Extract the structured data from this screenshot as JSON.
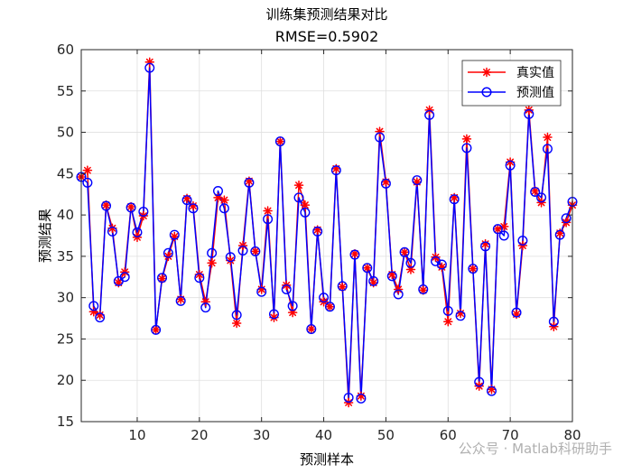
{
  "chart_data": {
    "type": "line",
    "title": "训练集预测结果对比",
    "subtitle": "RMSE=0.5902",
    "xlabel": "预测样本",
    "ylabel": "预测结果",
    "xlim": [
      1,
      80
    ],
    "ylim": [
      15,
      60
    ],
    "xticks": [
      10,
      20,
      30,
      40,
      50,
      60,
      70,
      80
    ],
    "yticks": [
      15,
      20,
      25,
      30,
      35,
      40,
      45,
      50,
      55,
      60
    ],
    "grid": true,
    "legend_position": "top-right",
    "x": [
      1,
      2,
      3,
      4,
      5,
      6,
      7,
      8,
      9,
      10,
      11,
      12,
      13,
      14,
      15,
      16,
      17,
      18,
      19,
      20,
      21,
      22,
      23,
      24,
      25,
      26,
      27,
      28,
      29,
      30,
      31,
      32,
      33,
      34,
      35,
      36,
      37,
      38,
      39,
      40,
      41,
      42,
      43,
      44,
      45,
      46,
      47,
      48,
      49,
      50,
      51,
      52,
      53,
      54,
      55,
      56,
      57,
      58,
      59,
      60,
      61,
      62,
      63,
      64,
      65,
      66,
      67,
      68,
      69,
      70,
      71,
      72,
      73,
      74,
      75,
      76,
      77,
      78,
      79,
      80
    ],
    "series": [
      {
        "name": "真实值",
        "color": "#ff0000",
        "marker": "asterisk",
        "values": [
          44.6,
          45.4,
          28.3,
          27.9,
          41.2,
          38.4,
          31.8,
          33.1,
          41.0,
          37.3,
          39.9,
          58.5,
          26.1,
          32.3,
          35.0,
          37.4,
          29.8,
          42.0,
          41.1,
          32.8,
          29.5,
          34.2,
          42.1,
          41.8,
          34.5,
          26.9,
          36.3,
          44.1,
          35.6,
          31.0,
          40.5,
          27.6,
          48.9,
          31.5,
          28.2,
          43.6,
          41.2,
          26.2,
          38.2,
          29.5,
          28.9,
          45.6,
          31.3,
          17.3,
          35.3,
          18.1,
          33.6,
          31.8,
          50.1,
          44.0,
          32.8,
          31.0,
          35.5,
          33.4,
          44.0,
          30.9,
          52.7,
          34.9,
          33.7,
          27.1,
          42.1,
          28.1,
          49.2,
          33.5,
          19.3,
          36.5,
          18.9,
          38.3,
          38.6,
          46.4,
          28.0,
          36.3,
          52.7,
          42.9,
          41.5,
          49.4,
          26.5,
          37.8,
          39.1,
          41.2
        ]
      },
      {
        "name": "预测值",
        "color": "#0000ff",
        "marker": "circle",
        "values": [
          44.6,
          43.9,
          29.0,
          27.6,
          41.1,
          38.0,
          32.0,
          32.5,
          40.9,
          37.9,
          40.4,
          57.8,
          26.1,
          32.4,
          35.4,
          37.6,
          29.6,
          41.8,
          40.8,
          32.4,
          28.8,
          35.4,
          42.9,
          40.8,
          34.9,
          27.9,
          35.7,
          43.9,
          35.6,
          30.7,
          39.5,
          28.0,
          48.9,
          31.0,
          29.0,
          42.1,
          40.3,
          26.2,
          38.0,
          30.0,
          28.9,
          45.4,
          31.4,
          17.9,
          35.2,
          17.8,
          33.6,
          32.0,
          49.4,
          43.8,
          32.6,
          30.4,
          35.5,
          34.2,
          44.2,
          31.0,
          52.1,
          34.4,
          34.0,
          28.4,
          41.9,
          27.8,
          48.1,
          33.5,
          19.8,
          36.2,
          18.7,
          38.3,
          37.5,
          46.0,
          28.2,
          36.9,
          52.2,
          42.8,
          42.1,
          48.0,
          27.1,
          37.6,
          39.6,
          41.6
        ]
      }
    ]
  },
  "watermark": "公众号 · Matlab科研助手"
}
